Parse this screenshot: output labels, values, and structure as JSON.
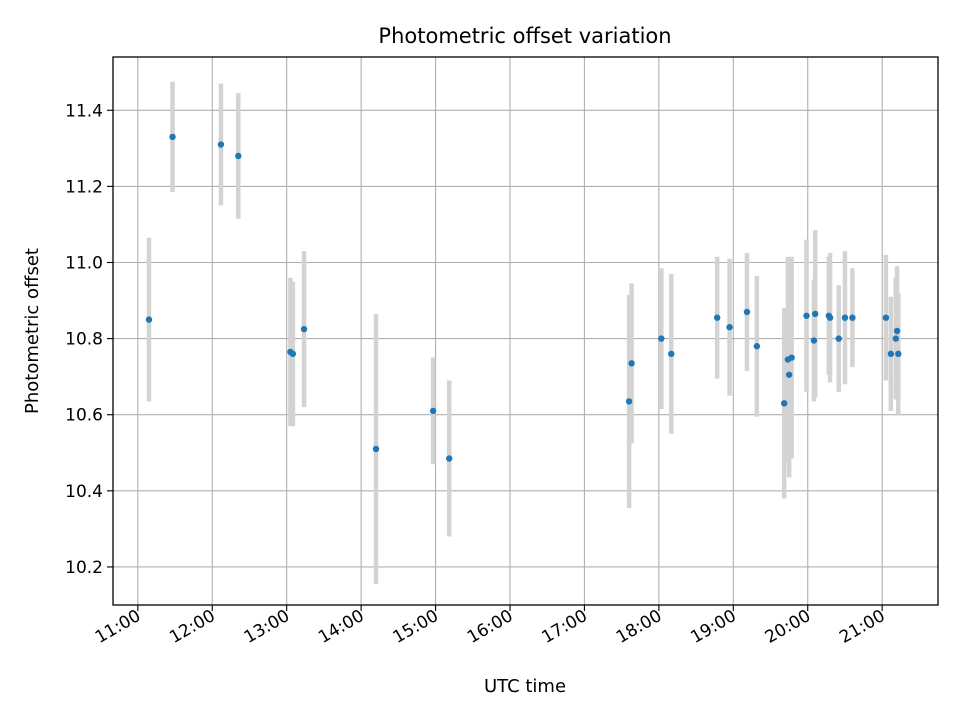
{
  "chart_data": {
    "type": "scatter",
    "title": "Photometric offset variation",
    "xlabel": "UTC time",
    "ylabel": "Photometric offset",
    "xlim": [
      "10:40",
      "21:45"
    ],
    "ylim": [
      10.1,
      11.54
    ],
    "x_ticks": [
      "11:00",
      "12:00",
      "13:00",
      "14:00",
      "15:00",
      "16:00",
      "17:00",
      "18:00",
      "19:00",
      "20:00",
      "21:00"
    ],
    "y_ticks": [
      "10.2",
      "10.4",
      "10.6",
      "10.8",
      "11.0",
      "11.2",
      "11.4"
    ],
    "grid": true,
    "colors": {
      "marker": "#1f77b4",
      "error_bar": "#d3d3d3",
      "grid": "#b0b0b0"
    },
    "points": [
      {
        "x": "11:09",
        "y": 10.85,
        "err": 0.215
      },
      {
        "x": "11:28",
        "y": 11.33,
        "err": 0.145
      },
      {
        "x": "12:07",
        "y": 11.31,
        "err": 0.16
      },
      {
        "x": "12:21",
        "y": 11.28,
        "err": 0.165
      },
      {
        "x": "13:03",
        "y": 10.765,
        "err": 0.195
      },
      {
        "x": "13:05",
        "y": 10.76,
        "err": 0.19
      },
      {
        "x": "13:14",
        "y": 10.825,
        "err": 0.205
      },
      {
        "x": "14:12",
        "y": 10.51,
        "err": 0.355
      },
      {
        "x": "14:58",
        "y": 10.61,
        "err": 0.14
      },
      {
        "x": "15:11",
        "y": 10.485,
        "err": 0.205
      },
      {
        "x": "17:36",
        "y": 10.635,
        "err": 0.28
      },
      {
        "x": "17:38",
        "y": 10.735,
        "err": 0.21
      },
      {
        "x": "18:02",
        "y": 10.8,
        "err": 0.185
      },
      {
        "x": "18:10",
        "y": 10.76,
        "err": 0.21
      },
      {
        "x": "18:47",
        "y": 10.855,
        "err": 0.16
      },
      {
        "x": "18:57",
        "y": 10.83,
        "err": 0.18
      },
      {
        "x": "19:11",
        "y": 10.87,
        "err": 0.155
      },
      {
        "x": "19:19",
        "y": 10.78,
        "err": 0.185
      },
      {
        "x": "19:41",
        "y": 10.63,
        "err": 0.25
      },
      {
        "x": "19:44",
        "y": 10.745,
        "err": 0.27
      },
      {
        "x": "19:45",
        "y": 10.705,
        "err": 0.27
      },
      {
        "x": "19:47",
        "y": 10.75,
        "err": 0.265
      },
      {
        "x": "19:59",
        "y": 10.86,
        "err": 0.2
      },
      {
        "x": "20:05",
        "y": 10.795,
        "err": 0.16
      },
      {
        "x": "20:06",
        "y": 10.865,
        "err": 0.22
      },
      {
        "x": "20:17",
        "y": 10.86,
        "err": 0.155
      },
      {
        "x": "20:18",
        "y": 10.855,
        "err": 0.17
      },
      {
        "x": "20:25",
        "y": 10.8,
        "err": 0.14
      },
      {
        "x": "20:30",
        "y": 10.855,
        "err": 0.175
      },
      {
        "x": "20:36",
        "y": 10.855,
        "err": 0.13
      },
      {
        "x": "21:03",
        "y": 10.855,
        "err": 0.165
      },
      {
        "x": "21:07",
        "y": 10.76,
        "err": 0.15
      },
      {
        "x": "21:11",
        "y": 10.8,
        "err": 0.16
      },
      {
        "x": "21:12",
        "y": 10.82,
        "err": 0.17
      },
      {
        "x": "21:13",
        "y": 10.76,
        "err": 0.16
      }
    ]
  }
}
